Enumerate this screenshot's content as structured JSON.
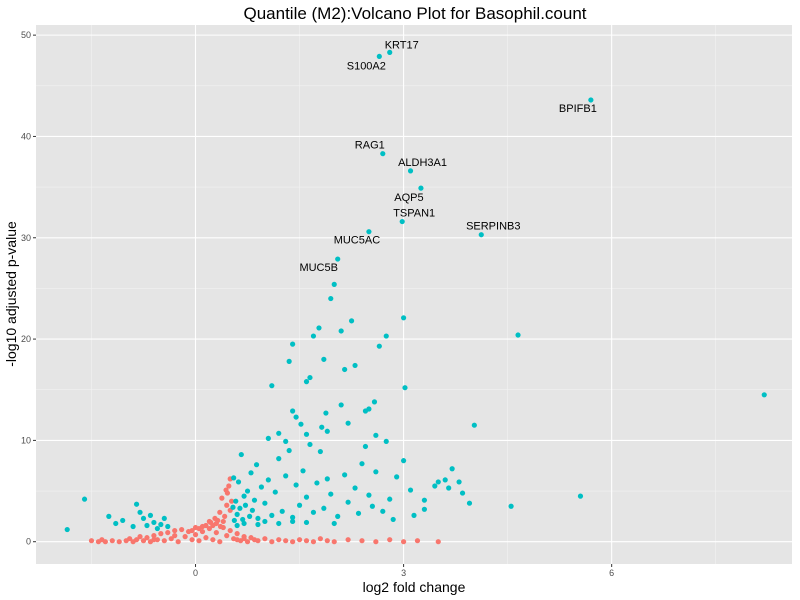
{
  "chart_data": {
    "type": "scatter",
    "title": "Quantile (M2):Volcano Plot for Basophil.count",
    "xlabel": "log2 fold change",
    "ylabel": "-log10 adjusted p-value",
    "xlim": [
      -2.3,
      8.6
    ],
    "ylim": [
      -2.2,
      51
    ],
    "x_ticks": [
      0,
      3,
      6
    ],
    "y_ticks": [
      0,
      10,
      20,
      30,
      40,
      50
    ],
    "grid": true,
    "panel_background": "#e5e5e5",
    "legend": "none",
    "colors": {
      "not_significant": "#f8766d",
      "significant": "#00bfc4"
    },
    "labeled_points": [
      {
        "gene": "KRT17",
        "x": 2.8,
        "y": 48.3
      },
      {
        "gene": "S100A2",
        "x": 2.65,
        "y": 47.9
      },
      {
        "gene": "BPIFB1",
        "x": 5.7,
        "y": 43.6
      },
      {
        "gene": "RAG1",
        "x": 2.7,
        "y": 38.3
      },
      {
        "gene": "ALDH3A1",
        "x": 3.1,
        "y": 36.6
      },
      {
        "gene": "AQP5",
        "x": 3.25,
        "y": 34.9
      },
      {
        "gene": "TSPAN1",
        "x": 2.98,
        "y": 31.6
      },
      {
        "gene": "SERPINB3",
        "x": 4.12,
        "y": 30.3
      },
      {
        "gene": "MUC5AC",
        "x": 2.5,
        "y": 30.6
      },
      {
        "gene": "MUC5B",
        "x": 2.05,
        "y": 27.9
      }
    ],
    "series": [
      {
        "group": "significant",
        "points": [
          [
            8.2,
            14.5
          ],
          [
            4.65,
            20.4
          ],
          [
            3.0,
            22.1
          ],
          [
            2.25,
            21.8
          ],
          [
            2.1,
            20.8
          ],
          [
            2.65,
            19.3
          ],
          [
            2.75,
            20.3
          ],
          [
            2.0,
            25.4
          ],
          [
            1.95,
            24.0
          ],
          [
            1.7,
            20.3
          ],
          [
            1.78,
            21.1
          ],
          [
            1.4,
            19.5
          ],
          [
            1.35,
            17.8
          ],
          [
            1.85,
            18.0
          ],
          [
            2.15,
            17.0
          ],
          [
            2.3,
            17.4
          ],
          [
            1.65,
            16.2
          ],
          [
            1.6,
            15.8
          ],
          [
            1.1,
            15.4
          ],
          [
            3.02,
            15.2
          ],
          [
            2.58,
            13.8
          ],
          [
            2.5,
            13.1
          ],
          [
            2.1,
            13.5
          ],
          [
            1.88,
            12.7
          ],
          [
            2.45,
            12.9
          ],
          [
            1.4,
            12.9
          ],
          [
            1.45,
            12.3
          ],
          [
            1.52,
            11.6
          ],
          [
            1.82,
            11.3
          ],
          [
            2.2,
            11.7
          ],
          [
            1.9,
            10.9
          ],
          [
            4.02,
            11.5
          ],
          [
            1.05,
            10.2
          ],
          [
            1.2,
            10.7
          ],
          [
            1.6,
            10.6
          ],
          [
            2.6,
            10.5
          ],
          [
            2.75,
            9.9
          ],
          [
            2.45,
            9.4
          ],
          [
            1.35,
            9.0
          ],
          [
            3.7,
            7.2
          ],
          [
            3.6,
            6.1
          ],
          [
            3.8,
            5.9
          ],
          [
            3.5,
            5.9
          ],
          [
            3.45,
            5.5
          ],
          [
            3.65,
            5.3
          ],
          [
            3.85,
            4.8
          ],
          [
            3.95,
            3.8
          ],
          [
            5.55,
            4.5
          ],
          [
            4.55,
            3.5
          ],
          [
            3.3,
            3.2
          ],
          [
            3.15,
            2.6
          ],
          [
            -1.6,
            4.2
          ],
          [
            -1.85,
            1.2
          ],
          [
            -1.25,
            2.5
          ],
          [
            -1.15,
            1.8
          ],
          [
            -1.05,
            2.1
          ],
          [
            -0.9,
            1.5
          ],
          [
            -0.85,
            3.7
          ],
          [
            -0.8,
            2.9
          ],
          [
            -0.75,
            2.3
          ],
          [
            -0.7,
            1.6
          ],
          [
            -0.6,
            1.9
          ],
          [
            -0.55,
            1.3
          ],
          [
            -0.65,
            2.6
          ],
          [
            -0.5,
            1.7
          ],
          [
            -0.45,
            2.3
          ],
          [
            -0.4,
            1.5
          ],
          [
            3.0,
            8.0
          ],
          [
            2.9,
            6.4
          ],
          [
            3.1,
            5.1
          ],
          [
            2.8,
            4.2
          ],
          [
            2.55,
            3.5
          ],
          [
            2.35,
            2.8
          ],
          [
            2.2,
            3.9
          ],
          [
            2.05,
            2.5
          ],
          [
            1.95,
            4.7
          ],
          [
            1.85,
            3.3
          ],
          [
            1.75,
            5.8
          ],
          [
            1.7,
            2.9
          ],
          [
            1.6,
            4.4
          ],
          [
            1.55,
            7.0
          ],
          [
            1.5,
            3.6
          ],
          [
            1.45,
            5.6
          ],
          [
            1.4,
            2.4
          ],
          [
            1.3,
            6.5
          ],
          [
            1.25,
            3.0
          ],
          [
            1.2,
            8.2
          ],
          [
            1.15,
            4.9
          ],
          [
            1.1,
            2.6
          ],
          [
            1.05,
            6.1
          ],
          [
            1.0,
            3.8
          ],
          [
            0.95,
            5.4
          ],
          [
            0.9,
            2.3
          ],
          [
            0.88,
            7.6
          ],
          [
            0.85,
            4.1
          ],
          [
            0.82,
            3.1
          ],
          [
            0.8,
            6.8
          ],
          [
            0.78,
            2.5
          ],
          [
            0.75,
            5.0
          ],
          [
            0.72,
            3.6
          ],
          [
            0.7,
            4.5
          ],
          [
            0.68,
            2.2
          ],
          [
            0.66,
            8.6
          ],
          [
            0.64,
            3.3
          ],
          [
            0.62,
            5.9
          ],
          [
            0.6,
            2.7
          ],
          [
            0.58,
            4.0
          ],
          [
            0.56,
            2.1
          ],
          [
            0.55,
            6.3
          ],
          [
            0.54,
            3.4
          ],
          [
            2.6,
            6.9
          ],
          [
            2.4,
            7.7
          ],
          [
            2.3,
            5.3
          ],
          [
            2.15,
            6.6
          ],
          [
            1.9,
            6.2
          ],
          [
            1.8,
            8.9
          ],
          [
            1.65,
            9.6
          ],
          [
            1.3,
            9.9
          ],
          [
            2.7,
            3.0
          ],
          [
            2.5,
            4.6
          ],
          [
            3.3,
            4.1
          ],
          [
            2.85,
            2.2
          ],
          [
            2.0,
            1.8
          ],
          [
            1.6,
            1.9
          ],
          [
            1.2,
            1.8
          ],
          [
            0.9,
            1.7
          ],
          [
            0.7,
            1.8
          ],
          [
            0.6,
            1.6
          ],
          [
            1.0,
            2.0
          ],
          [
            1.4,
            2.0
          ]
        ]
      },
      {
        "group": "not_significant",
        "points": [
          [
            -1.5,
            0.1
          ],
          [
            -1.4,
            0.0
          ],
          [
            -1.35,
            0.2
          ],
          [
            -1.2,
            0.1
          ],
          [
            -1.1,
            0.0
          ],
          [
            -1.0,
            0.1
          ],
          [
            -0.95,
            0.3
          ],
          [
            -0.9,
            0.0
          ],
          [
            -0.85,
            0.2
          ],
          [
            -0.8,
            0.5
          ],
          [
            -0.75,
            0.1
          ],
          [
            -0.7,
            0.4
          ],
          [
            -0.65,
            0.0
          ],
          [
            -0.6,
            0.6
          ],
          [
            -0.55,
            0.2
          ],
          [
            -0.5,
            0.8
          ],
          [
            -0.45,
            0.1
          ],
          [
            -0.4,
            0.9
          ],
          [
            -0.35,
            0.3
          ],
          [
            -0.3,
            1.1
          ],
          [
            -0.25,
            0.0
          ],
          [
            -0.2,
            1.2
          ],
          [
            -0.15,
            0.5
          ],
          [
            -0.1,
            1.0
          ],
          [
            -0.05,
            0.2
          ],
          [
            0.0,
            0.7
          ],
          [
            0.05,
            0.1
          ],
          [
            0.1,
            1.0
          ],
          [
            0.15,
            0.4
          ],
          [
            0.2,
            1.3
          ],
          [
            0.25,
            0.2
          ],
          [
            0.3,
            0.9
          ],
          [
            0.35,
            0.0
          ],
          [
            0.4,
            1.4
          ],
          [
            0.45,
            0.6
          ],
          [
            0.5,
            1.1
          ],
          [
            0.55,
            0.3
          ],
          [
            0.6,
            0.8
          ],
          [
            0.65,
            0.1
          ],
          [
            0.7,
            0.5
          ],
          [
            0.75,
            0.0
          ],
          [
            0.8,
            0.4
          ],
          [
            0.85,
            0.2
          ],
          [
            0.9,
            0.1
          ],
          [
            1.0,
            0.3
          ],
          [
            1.1,
            0.0
          ],
          [
            1.2,
            0.2
          ],
          [
            1.3,
            0.1
          ],
          [
            1.4,
            0.0
          ],
          [
            1.5,
            0.2
          ],
          [
            1.6,
            0.1
          ],
          [
            1.7,
            0.0
          ],
          [
            1.8,
            0.3
          ],
          [
            1.9,
            0.1
          ],
          [
            2.0,
            0.0
          ],
          [
            2.2,
            0.2
          ],
          [
            2.4,
            0.1
          ],
          [
            2.6,
            0.0
          ],
          [
            2.8,
            0.2
          ],
          [
            3.0,
            0.0
          ],
          [
            3.2,
            0.1
          ],
          [
            3.5,
            0.0
          ],
          [
            0.42,
            2.5
          ],
          [
            0.45,
            3.6
          ],
          [
            0.38,
            4.3
          ],
          [
            0.4,
            2.0
          ],
          [
            0.35,
            2.9
          ],
          [
            0.3,
            1.8
          ],
          [
            0.28,
            2.3
          ],
          [
            0.25,
            1.6
          ],
          [
            0.2,
            2.0
          ],
          [
            0.5,
            6.2
          ],
          [
            0.48,
            5.5
          ],
          [
            0.46,
            4.8
          ],
          [
            0.44,
            5.1
          ],
          [
            0.52,
            4.0
          ],
          [
            0.5,
            3.1
          ],
          [
            0.1,
            1.5
          ],
          [
            0.05,
            1.3
          ],
          [
            0.0,
            1.4
          ],
          [
            -0.05,
            1.1
          ],
          [
            -0.3,
            0.6
          ],
          [
            -0.6,
            0.2
          ],
          [
            -1.3,
            0.0
          ],
          [
            0.6,
            0.2
          ],
          [
            0.7,
            0.3
          ],
          [
            0.15,
            1.6
          ],
          [
            0.22,
            1.9
          ],
          [
            0.32,
            2.1
          ],
          [
            0.36,
            1.5
          ]
        ]
      }
    ]
  }
}
